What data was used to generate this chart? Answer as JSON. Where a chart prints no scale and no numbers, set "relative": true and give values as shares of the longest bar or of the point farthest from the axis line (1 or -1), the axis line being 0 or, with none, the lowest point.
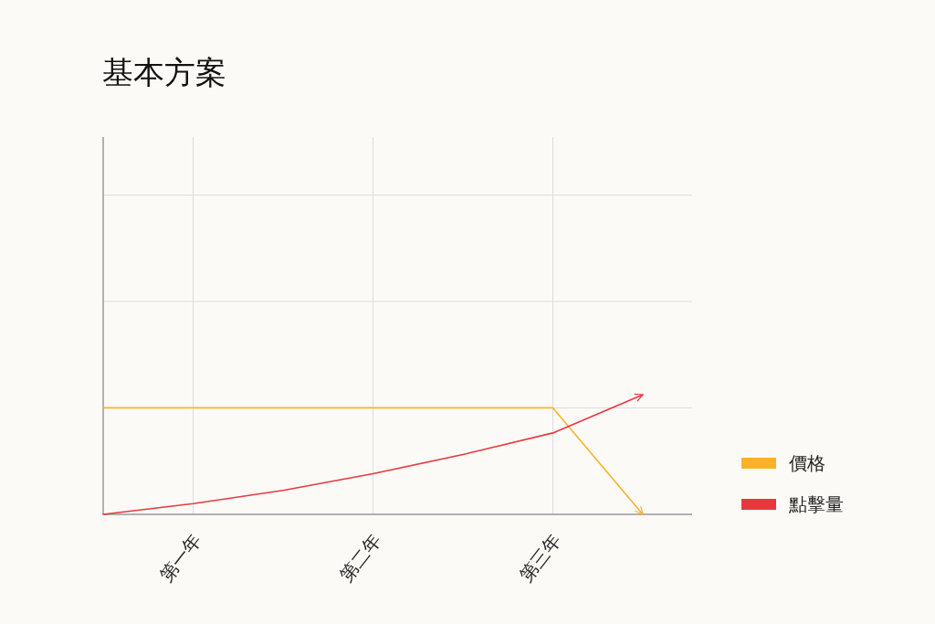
{
  "chart_data": {
    "type": "line",
    "title": "基本方案",
    "relative": true,
    "categories": [
      null,
      "第一年",
      null,
      "第二年",
      null,
      "第三年",
      null
    ],
    "grid": true,
    "legend": "right",
    "marker": "none",
    "series": [
      {
        "name": "價格",
        "color": "#fbb12b",
        "values": [
          0.89,
          0.89,
          0.89,
          0.89,
          0.89,
          0.89,
          0
        ]
      },
      {
        "name": "點擊量",
        "color": "#e8383d",
        "values": [
          0,
          0.09,
          0.2,
          0.34,
          0.5,
          0.68,
          1
        ]
      }
    ]
  }
}
